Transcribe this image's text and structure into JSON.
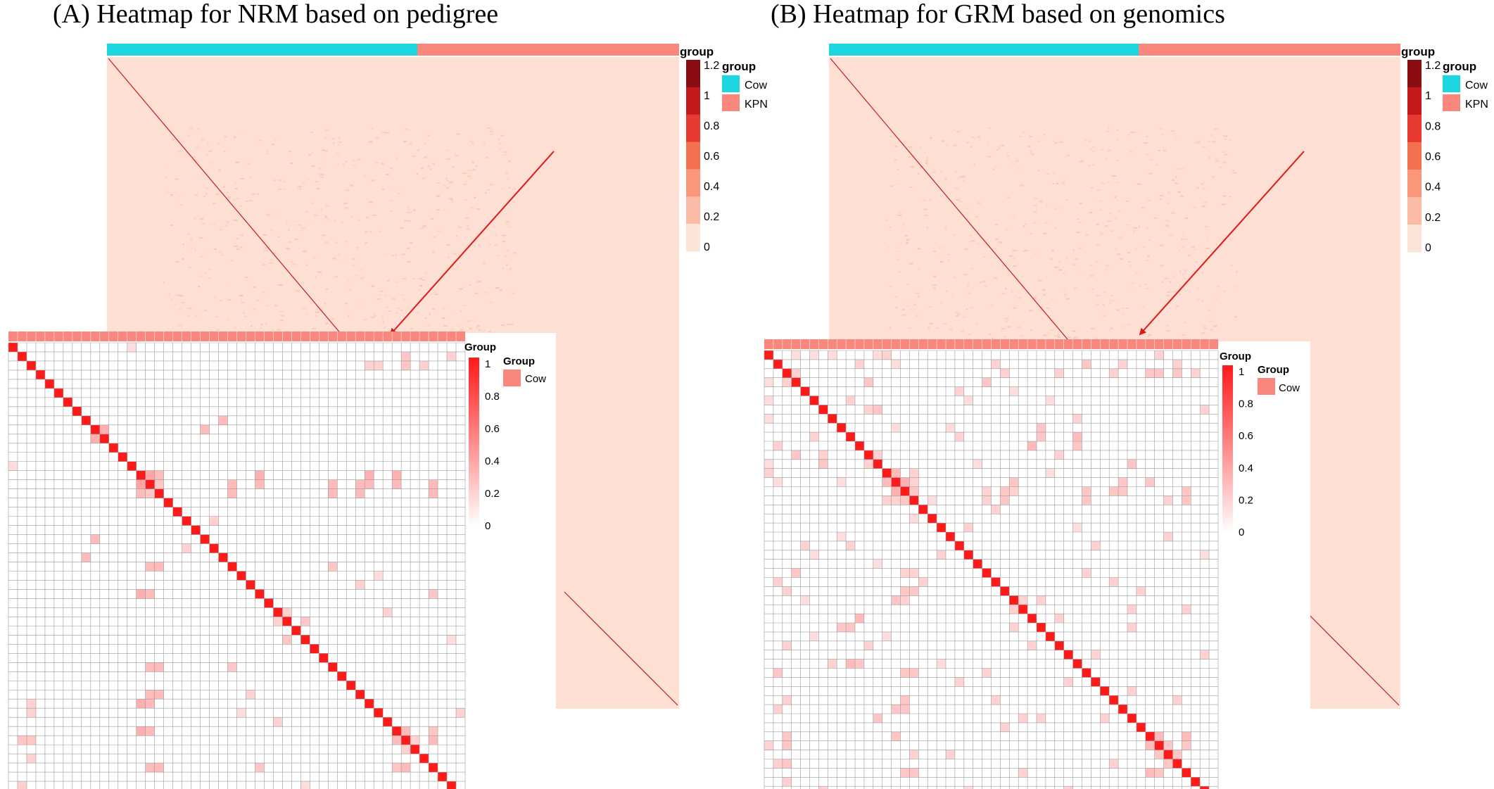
{
  "chart_data": [
    {
      "type": "heatmap",
      "title": "(A) Heatmap for NRM based on pedigree",
      "annotation": {
        "title": "group",
        "groups": [
          {
            "name": "Cow",
            "color": "#1cd6df",
            "fraction": 0.542
          },
          {
            "name": "KPN",
            "color": "#f9877d",
            "fraction": 0.458
          }
        ]
      },
      "colorbar": {
        "ticks": [
          "1.2",
          "1",
          "0.8",
          "0.6",
          "0.4",
          "0.2",
          "0"
        ],
        "colors": [
          "#8b0d10",
          "#c5181d",
          "#e83a31",
          "#f5704f",
          "#fa977a",
          "#fcbba5",
          "#fde4d9"
        ]
      },
      "background_color": "#fde0d3",
      "diagonal_value": 1,
      "inset": {
        "type": "heatmap",
        "n": 50,
        "annotation": {
          "title": "Group",
          "groups": [
            {
              "name": "Cow",
              "color": "#f9877d"
            }
          ]
        },
        "colorbar": {
          "ticks": [
            "1",
            "0.8",
            "0.6",
            "0.4",
            "0.2",
            "0"
          ],
          "low": "#ffffff",
          "high": "#ff1a1a"
        },
        "diagonal_value": 1,
        "offdiagonal": [
          {
            "r": 0,
            "c": 13,
            "v": 0.15
          },
          {
            "r": 1,
            "c": 43,
            "v": 0.25
          },
          {
            "r": 1,
            "c": 48,
            "v": 0.2
          },
          {
            "r": 8,
            "c": 23,
            "v": 0.3
          },
          {
            "r": 9,
            "c": 10,
            "v": 0.35
          },
          {
            "r": 14,
            "c": 15,
            "v": 0.4
          },
          {
            "r": 14,
            "c": 16,
            "v": 0.3
          },
          {
            "r": 14,
            "c": 27,
            "v": 0.35
          },
          {
            "r": 14,
            "c": 39,
            "v": 0.35
          },
          {
            "r": 14,
            "c": 42,
            "v": 0.35
          },
          {
            "r": 15,
            "c": 16,
            "v": 0.25
          },
          {
            "r": 15,
            "c": 27,
            "v": 0.3
          },
          {
            "r": 15,
            "c": 39,
            "v": 0.3
          },
          {
            "r": 15,
            "c": 42,
            "v": 0.3
          },
          {
            "r": 19,
            "c": 22,
            "v": 0.2
          },
          {
            "r": 21,
            "c": 9,
            "v": 0.3
          },
          {
            "r": 24,
            "c": 15,
            "v": 0.3
          },
          {
            "r": 24,
            "c": 16,
            "v": 0.3
          },
          {
            "r": 24,
            "c": 35,
            "v": 0.25
          },
          {
            "r": 26,
            "c": 38,
            "v": 0.2
          },
          {
            "r": 25,
            "c": 40,
            "v": 0.15
          },
          {
            "r": 30,
            "c": 29,
            "v": 0.2
          },
          {
            "r": 30,
            "c": 32,
            "v": 0.25
          },
          {
            "r": 29,
            "c": 41,
            "v": 0.2
          },
          {
            "r": 32,
            "c": 48,
            "v": 0.15
          },
          {
            "r": 35,
            "c": 15,
            "v": 0.3
          },
          {
            "r": 35,
            "c": 16,
            "v": 0.3
          },
          {
            "r": 38,
            "c": 15,
            "v": 0.3
          },
          {
            "r": 38,
            "c": 16,
            "v": 0.3
          },
          {
            "r": 39,
            "c": 2,
            "v": 0.2
          },
          {
            "r": 40,
            "c": 2,
            "v": 0.2
          },
          {
            "r": 40,
            "c": 49,
            "v": 0.2
          },
          {
            "r": 42,
            "c": 43,
            "v": 0.3
          },
          {
            "r": 43,
            "c": 44,
            "v": 0.2
          },
          {
            "r": 43,
            "c": 2,
            "v": 0.25
          },
          {
            "r": 46,
            "c": 15,
            "v": 0.3
          },
          {
            "r": 46,
            "c": 16,
            "v": 0.3
          },
          {
            "r": 46,
            "c": 27,
            "v": 0.25
          },
          {
            "r": 46,
            "c": 42,
            "v": 0.25
          },
          {
            "r": 46,
            "c": 43,
            "v": 0.3
          },
          {
            "r": 45,
            "c": 2,
            "v": 0.2
          }
        ]
      }
    },
    {
      "type": "heatmap",
      "title": "(B) Heatmap for GRM based on genomics",
      "annotation": {
        "title": "group",
        "groups": [
          {
            "name": "Cow",
            "color": "#1cd6df",
            "fraction": 0.542
          },
          {
            "name": "KPN",
            "color": "#f9877d",
            "fraction": 0.458
          }
        ]
      },
      "colorbar": {
        "ticks": [
          "1.2",
          "1",
          "0.8",
          "0.6",
          "0.4",
          "0.2",
          "0"
        ],
        "colors": [
          "#8b0d10",
          "#c5181d",
          "#e83a31",
          "#f5704f",
          "#fa977a",
          "#fcbba5",
          "#fde4d9"
        ]
      },
      "background_color": "#fde0d3",
      "diagonal_value": 1,
      "inset": {
        "type": "heatmap",
        "n": 50,
        "annotation": {
          "title": "Group",
          "groups": [
            {
              "name": "Cow",
              "color": "#f9877d"
            }
          ]
        },
        "colorbar": {
          "ticks": [
            "1",
            "0.8",
            "0.6",
            "0.4",
            "0.2",
            "0"
          ],
          "low": "#ffffff",
          "high": "#ff1a1a"
        },
        "diagonal_value": 1,
        "offdiagonal": [
          {
            "r": 0,
            "c": 3,
            "v": 0.15
          },
          {
            "r": 0,
            "c": 7,
            "v": 0.15
          },
          {
            "r": 0,
            "c": 13,
            "v": 0.2
          },
          {
            "r": 0,
            "c": 43,
            "v": 0.2
          },
          {
            "r": 1,
            "c": 10,
            "v": 0.2
          },
          {
            "r": 1,
            "c": 14,
            "v": 0.15
          },
          {
            "r": 1,
            "c": 25,
            "v": 0.2
          },
          {
            "r": 1,
            "c": 35,
            "v": 0.25
          },
          {
            "r": 2,
            "c": 3,
            "v": 0.2
          },
          {
            "r": 2,
            "c": 26,
            "v": 0.2
          },
          {
            "r": 2,
            "c": 43,
            "v": 0.25
          },
          {
            "r": 2,
            "c": 45,
            "v": 0.25
          },
          {
            "r": 4,
            "c": 21,
            "v": 0.2
          },
          {
            "r": 5,
            "c": 0,
            "v": 0.15
          },
          {
            "r": 5,
            "c": 9,
            "v": 0.2
          },
          {
            "r": 5,
            "c": 31,
            "v": 0.15
          },
          {
            "r": 7,
            "c": 34,
            "v": 0.2
          },
          {
            "r": 8,
            "c": 14,
            "v": 0.15
          },
          {
            "r": 9,
            "c": 34,
            "v": 0.3
          },
          {
            "r": 10,
            "c": 34,
            "v": 0.25
          },
          {
            "r": 11,
            "c": 3,
            "v": 0.25
          },
          {
            "r": 11,
            "c": 6,
            "v": 0.2
          },
          {
            "r": 11,
            "c": 12,
            "v": 0.2
          },
          {
            "r": 11,
            "c": 32,
            "v": 0.2
          },
          {
            "r": 12,
            "c": 0,
            "v": 0.15
          },
          {
            "r": 12,
            "c": 6,
            "v": 0.25
          },
          {
            "r": 13,
            "c": 14,
            "v": 0.3
          },
          {
            "r": 13,
            "c": 16,
            "v": 0.2
          },
          {
            "r": 14,
            "c": 15,
            "v": 0.35
          },
          {
            "r": 14,
            "c": 16,
            "v": 0.2
          },
          {
            "r": 14,
            "c": 27,
            "v": 0.25
          },
          {
            "r": 14,
            "c": 39,
            "v": 0.3
          },
          {
            "r": 14,
            "c": 42,
            "v": 0.25
          },
          {
            "r": 15,
            "c": 16,
            "v": 0.25
          },
          {
            "r": 15,
            "c": 27,
            "v": 0.2
          },
          {
            "r": 15,
            "c": 39,
            "v": 0.25
          },
          {
            "r": 16,
            "c": 18,
            "v": 0.15
          },
          {
            "r": 17,
            "c": 25,
            "v": 0.2
          },
          {
            "r": 19,
            "c": 22,
            "v": 0.2
          },
          {
            "r": 20,
            "c": 8,
            "v": 0.15
          },
          {
            "r": 20,
            "c": 44,
            "v": 0.2
          },
          {
            "r": 21,
            "c": 9,
            "v": 0.2
          },
          {
            "r": 22,
            "c": 5,
            "v": 0.15
          },
          {
            "r": 23,
            "c": 12,
            "v": 0.15
          },
          {
            "r": 24,
            "c": 3,
            "v": 0.25
          },
          {
            "r": 24,
            "c": 15,
            "v": 0.2
          },
          {
            "r": 24,
            "c": 16,
            "v": 0.2
          },
          {
            "r": 24,
            "c": 35,
            "v": 0.2
          },
          {
            "r": 25,
            "c": 38,
            "v": 0.15
          },
          {
            "r": 26,
            "c": 15,
            "v": 0.25
          },
          {
            "r": 26,
            "c": 16,
            "v": 0.25
          },
          {
            "r": 27,
            "c": 4,
            "v": 0.15
          },
          {
            "r": 27,
            "c": 28,
            "v": 0.2
          },
          {
            "r": 28,
            "c": 40,
            "v": 0.2
          },
          {
            "r": 28,
            "c": 46,
            "v": 0.2
          },
          {
            "r": 29,
            "c": 10,
            "v": 0.3
          },
          {
            "r": 29,
            "c": 32,
            "v": 0.2
          },
          {
            "r": 30,
            "c": 8,
            "v": 0.25
          },
          {
            "r": 30,
            "c": 9,
            "v": 0.25
          },
          {
            "r": 30,
            "c": 27,
            "v": 0.2
          },
          {
            "r": 31,
            "c": 13,
            "v": 0.15
          },
          {
            "r": 32,
            "c": 2,
            "v": 0.2
          },
          {
            "r": 33,
            "c": 36,
            "v": 0.2
          },
          {
            "r": 34,
            "c": 19,
            "v": 0.15
          },
          {
            "r": 35,
            "c": 15,
            "v": 0.25
          },
          {
            "r": 35,
            "c": 16,
            "v": 0.25
          },
          {
            "r": 36,
            "c": 21,
            "v": 0.2
          },
          {
            "r": 37,
            "c": 40,
            "v": 0.2
          },
          {
            "r": 38,
            "c": 2,
            "v": 0.2
          },
          {
            "r": 38,
            "c": 15,
            "v": 0.25
          },
          {
            "r": 38,
            "c": 25,
            "v": 0.2
          },
          {
            "r": 39,
            "c": 1,
            "v": 0.2
          },
          {
            "r": 39,
            "c": 14,
            "v": 0.25
          },
          {
            "r": 40,
            "c": 12,
            "v": 0.25
          },
          {
            "r": 40,
            "c": 30,
            "v": 0.2
          },
          {
            "r": 41,
            "c": 26,
            "v": 0.2
          },
          {
            "r": 42,
            "c": 2,
            "v": 0.25
          },
          {
            "r": 42,
            "c": 43,
            "v": 0.3
          },
          {
            "r": 43,
            "c": 44,
            "v": 0.25
          },
          {
            "r": 44,
            "c": 45,
            "v": 0.25
          },
          {
            "r": 44,
            "c": 16,
            "v": 0.2
          },
          {
            "r": 45,
            "c": 1,
            "v": 0.2
          },
          {
            "r": 45,
            "c": 38,
            "v": 0.2
          },
          {
            "r": 46,
            "c": 15,
            "v": 0.25
          },
          {
            "r": 46,
            "c": 16,
            "v": 0.25
          },
          {
            "r": 46,
            "c": 28,
            "v": 0.2
          },
          {
            "r": 46,
            "c": 42,
            "v": 0.3
          },
          {
            "r": 46,
            "c": 43,
            "v": 0.25
          },
          {
            "r": 47,
            "c": 2,
            "v": 0.2
          },
          {
            "r": 48,
            "c": 6,
            "v": 0.2
          },
          {
            "r": 48,
            "c": 22,
            "v": 0.15
          },
          {
            "r": 48,
            "c": 33,
            "v": 0.2
          }
        ]
      }
    }
  ]
}
